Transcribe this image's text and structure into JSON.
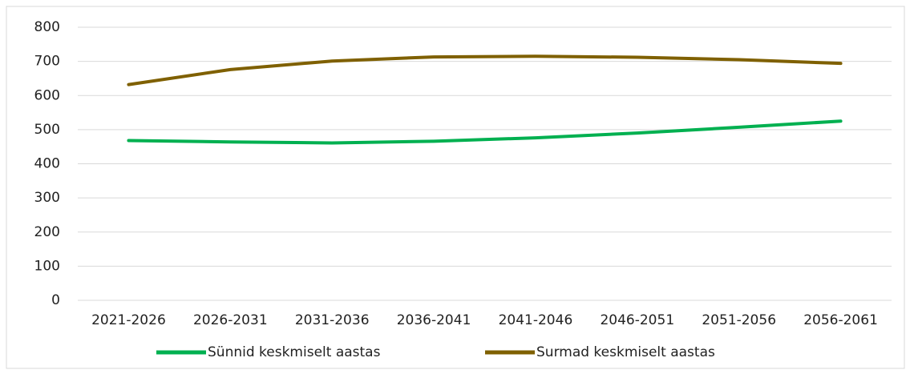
{
  "chart_data": {
    "type": "line",
    "categories": [
      "2021-2026",
      "2026-2031",
      "2031-2036",
      "2036-2041",
      "2041-2046",
      "2046-2051",
      "2051-2056",
      "2056-2061"
    ],
    "series": [
      {
        "name": "Sünnid keskmiselt aastas",
        "color": "#00b050",
        "values": [
          468,
          464,
          461,
          466,
          476,
          490,
          507,
          525
        ]
      },
      {
        "name": "Surmad keskmiselt aastas",
        "color": "#7f6000",
        "values": [
          632,
          676,
          701,
          713,
          715,
          712,
          705,
          694
        ]
      }
    ],
    "ylim": [
      0,
      800
    ],
    "yticks": [
      0,
      100,
      200,
      300,
      400,
      500,
      600,
      700,
      800
    ],
    "grid": true,
    "legend": "bottom"
  }
}
